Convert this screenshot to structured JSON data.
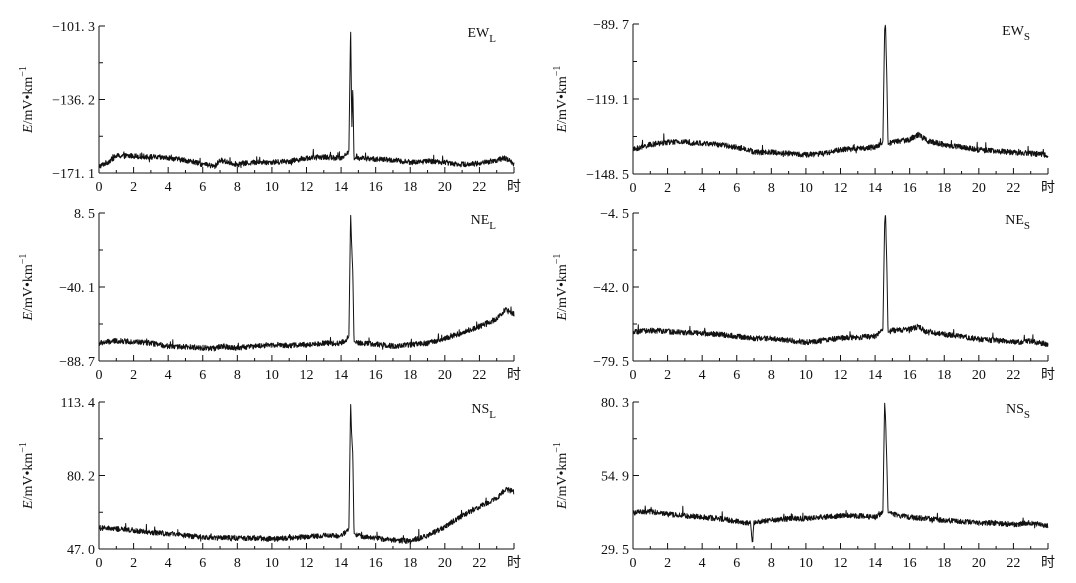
{
  "chart_data": [
    {
      "type": "line",
      "panel_label": "EW",
      "panel_sub": "L",
      "ylabel_prefix": "E",
      "ylabel_rest": "/mV•km",
      "ylabel_sup": "−1",
      "ylim": [
        -171.1,
        -101.3
      ],
      "y_ticks": [
        -101.3,
        -136.2,
        -171.1
      ],
      "y_tick_labels": [
        "−101. 3",
        "−136. 2",
        "−171. 1"
      ],
      "x_ticks": [
        0,
        2,
        4,
        6,
        8,
        10,
        12,
        14,
        16,
        18,
        20,
        22
      ],
      "x_unit": "时",
      "xlim": [
        0,
        24
      ],
      "series": [
        {
          "x": [
            0,
            0.5,
            1,
            2,
            3,
            4,
            5,
            6,
            6.7,
            7,
            8,
            9,
            10,
            11,
            12,
            13,
            14,
            14.45,
            14.55,
            14.62,
            14.68,
            14.75,
            14.9,
            15,
            16,
            17,
            18,
            19,
            20,
            21,
            22,
            23,
            23.5,
            24
          ],
          "y": [
            -168,
            -166,
            -163,
            -163,
            -163.5,
            -164,
            -165,
            -167,
            -168,
            -165,
            -167,
            -166,
            -166,
            -165.5,
            -164,
            -163.5,
            -164,
            -161,
            -101.3,
            -150,
            -130,
            -165,
            -163,
            -164,
            -164.5,
            -165,
            -166,
            -165.5,
            -166,
            -167,
            -166.5,
            -165,
            -164,
            -167
          ]
        }
      ]
    },
    {
      "type": "line",
      "panel_label": "EW",
      "panel_sub": "S",
      "ylabel_prefix": "E",
      "ylabel_rest": "/mV•km",
      "ylabel_sup": "−1",
      "ylim": [
        -148.5,
        -89.7
      ],
      "y_ticks": [
        -89.7,
        -119.1,
        -148.5
      ],
      "y_tick_labels": [
        "−89. 7",
        "−119. 1",
        "−148. 5"
      ],
      "x_ticks": [
        0,
        2,
        4,
        6,
        8,
        10,
        12,
        14,
        16,
        18,
        20,
        22
      ],
      "x_unit": "时",
      "xlim": [
        0,
        24
      ],
      "series": [
        {
          "x": [
            0,
            1,
            2,
            3,
            4,
            5,
            6,
            6.7,
            7,
            8,
            9,
            10,
            11,
            12,
            13,
            14,
            14.45,
            14.55,
            14.6,
            14.68,
            14.75,
            14.9,
            15,
            16,
            16.5,
            17,
            18,
            19,
            20,
            21,
            22,
            23,
            24
          ],
          "y": [
            -139,
            -137,
            -136,
            -136,
            -136.5,
            -137,
            -138,
            -139,
            -140,
            -140,
            -140.5,
            -141,
            -140.5,
            -139,
            -138.5,
            -138,
            -136,
            -92,
            -89.7,
            -110,
            -137,
            -136,
            -136,
            -135,
            -133,
            -135.5,
            -137,
            -138,
            -139,
            -139.5,
            -140,
            -140.5,
            -141
          ]
        }
      ]
    },
    {
      "type": "line",
      "panel_label": "NE",
      "panel_sub": "L",
      "ylabel_prefix": "E",
      "ylabel_rest": "/mV•km",
      "ylabel_sup": "−1",
      "ylim": [
        -88.7,
        8.5
      ],
      "y_ticks": [
        8.5,
        -40.1,
        -88.7
      ],
      "y_tick_labels": [
        "8. 5",
        "−40. 1",
        "−88. 7"
      ],
      "x_ticks": [
        0,
        2,
        4,
        6,
        8,
        10,
        12,
        14,
        16,
        18,
        20,
        22
      ],
      "x_unit": "时",
      "xlim": [
        0,
        24
      ],
      "series": [
        {
          "x": [
            0,
            1,
            2,
            3,
            4,
            5,
            6,
            6.7,
            7,
            8,
            9,
            10,
            11,
            12,
            13,
            14,
            14.45,
            14.55,
            14.6,
            14.68,
            14.75,
            14.9,
            15,
            16,
            17,
            18,
            19,
            20,
            21,
            22,
            23,
            23.5,
            24
          ],
          "y": [
            -77,
            -75.5,
            -76,
            -77,
            -79,
            -79.5,
            -80,
            -80.5,
            -79,
            -80,
            -79,
            -78,
            -78.5,
            -78,
            -77,
            -77,
            -73,
            8.5,
            -10,
            -30,
            -76,
            -76.5,
            -77,
            -77.5,
            -79,
            -78,
            -77,
            -74,
            -70,
            -66,
            -61,
            -55,
            -58
          ]
        }
      ]
    },
    {
      "type": "line",
      "panel_label": "NE",
      "panel_sub": "S",
      "ylabel_prefix": "E",
      "ylabel_rest": "/mV•km",
      "ylabel_sup": "−1",
      "ylim": [
        -79.5,
        -4.5
      ],
      "y_ticks": [
        -4.5,
        -42.0,
        -79.5
      ],
      "y_tick_labels": [
        "−4. 5",
        "−42. 0",
        "−79. 5"
      ],
      "x_ticks": [
        0,
        2,
        4,
        6,
        8,
        10,
        12,
        14,
        16,
        18,
        20,
        22
      ],
      "x_unit": "时",
      "xlim": [
        0,
        24
      ],
      "series": [
        {
          "x": [
            0,
            1,
            2,
            3,
            4,
            5,
            6,
            7,
            8,
            9,
            10,
            11,
            12,
            13,
            14,
            14.45,
            14.55,
            14.6,
            14.68,
            14.75,
            14.9,
            15,
            16,
            16.5,
            17,
            18,
            19,
            20,
            21,
            22,
            23,
            24
          ],
          "y": [
            -65,
            -64,
            -64.5,
            -65,
            -65.5,
            -66,
            -67,
            -68,
            -68,
            -69,
            -70,
            -69,
            -68,
            -67.5,
            -67,
            -64,
            -10,
            -4.5,
            -30,
            -65,
            -64.5,
            -64,
            -63.5,
            -62,
            -65,
            -66,
            -67,
            -68.5,
            -69,
            -70,
            -69.5,
            -71
          ]
        }
      ]
    },
    {
      "type": "line",
      "panel_label": "NS",
      "panel_sub": "L",
      "ylabel_prefix": "E",
      "ylabel_rest": "/mV•km",
      "ylabel_sup": "−1",
      "ylim": [
        47.0,
        113.4
      ],
      "y_ticks": [
        113.4,
        80.2,
        47.0
      ],
      "y_tick_labels": [
        "113. 4",
        "80. 2",
        "47. 0"
      ],
      "x_ticks": [
        0,
        2,
        4,
        6,
        8,
        10,
        12,
        14,
        16,
        18,
        20,
        22
      ],
      "x_unit": "时",
      "xlim": [
        0,
        24
      ],
      "series": [
        {
          "x": [
            0,
            1,
            2,
            3,
            4,
            5,
            6,
            7,
            8,
            9,
            10,
            11,
            12,
            13,
            14,
            14.45,
            14.55,
            14.6,
            14.68,
            14.75,
            14.9,
            15,
            16,
            17,
            18,
            19,
            20,
            21,
            22,
            23,
            23.5,
            24
          ],
          "y": [
            56.5,
            56,
            55.5,
            54.5,
            54,
            53,
            52.5,
            52,
            52,
            52,
            51.5,
            52,
            52.5,
            53,
            53,
            56,
            113.4,
            100,
            90,
            54,
            53.5,
            53,
            52,
            51,
            50.5,
            53,
            57,
            62,
            66,
            70,
            74,
            73
          ]
        }
      ]
    },
    {
      "type": "line",
      "panel_label": "NS",
      "panel_sub": "S",
      "ylabel_prefix": "E",
      "ylabel_rest": "/mV•km",
      "ylabel_sup": "−1",
      "ylim": [
        29.5,
        80.3
      ],
      "y_ticks": [
        80.3,
        54.9,
        29.5
      ],
      "y_tick_labels": [
        "80. 3",
        "54. 9",
        "29. 5"
      ],
      "x_ticks": [
        0,
        2,
        4,
        6,
        8,
        10,
        12,
        14,
        16,
        18,
        20,
        22
      ],
      "x_unit": "时",
      "xlim": [
        0,
        24
      ],
      "series": [
        {
          "x": [
            0,
            1,
            2,
            3,
            4,
            5,
            6,
            6.8,
            6.9,
            7,
            8,
            9,
            10,
            11,
            12,
            13,
            14,
            14.45,
            14.55,
            14.6,
            14.68,
            14.75,
            14.9,
            15,
            16,
            17,
            18,
            19,
            20,
            21,
            22,
            23,
            24
          ],
          "y": [
            42,
            42.5,
            41.5,
            41,
            40.5,
            40,
            39,
            38.5,
            31,
            38.5,
            39.5,
            40,
            40,
            40.5,
            41,
            41,
            40.5,
            42,
            80.3,
            75,
            60,
            42,
            42,
            41.5,
            40.5,
            40,
            39.5,
            39,
            38.5,
            38.5,
            38,
            38.5,
            37.5
          ]
        }
      ]
    }
  ]
}
